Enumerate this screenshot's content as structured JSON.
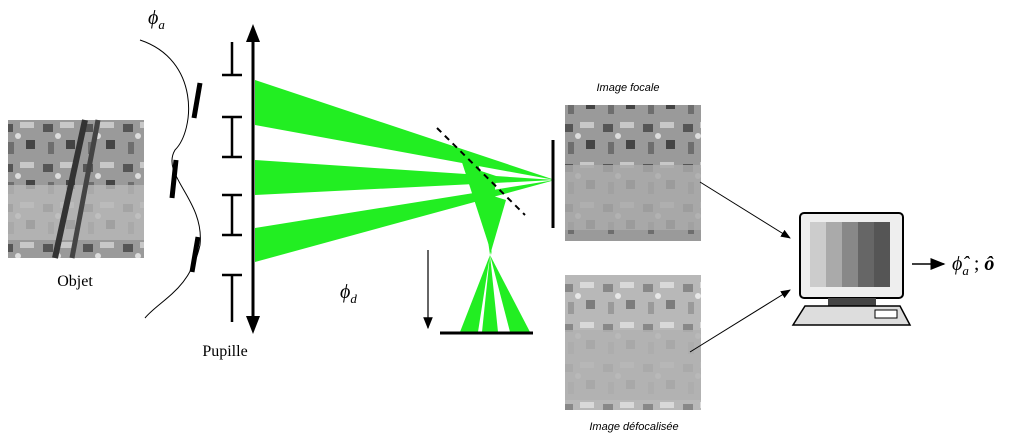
{
  "phi_a": {
    "symbol": "ϕ",
    "sub": "a"
  },
  "object_label": "Objet",
  "pupil_label": "Pupille",
  "phi_d": {
    "symbol": "ϕ",
    "sub": "d"
  },
  "focal_image_label": "Image focale",
  "defocused_image_label": "Image défocalisée",
  "output": {
    "phi": "ϕ̂",
    "phi_sub": "a",
    "separator": " ; ",
    "object": "ô"
  }
}
